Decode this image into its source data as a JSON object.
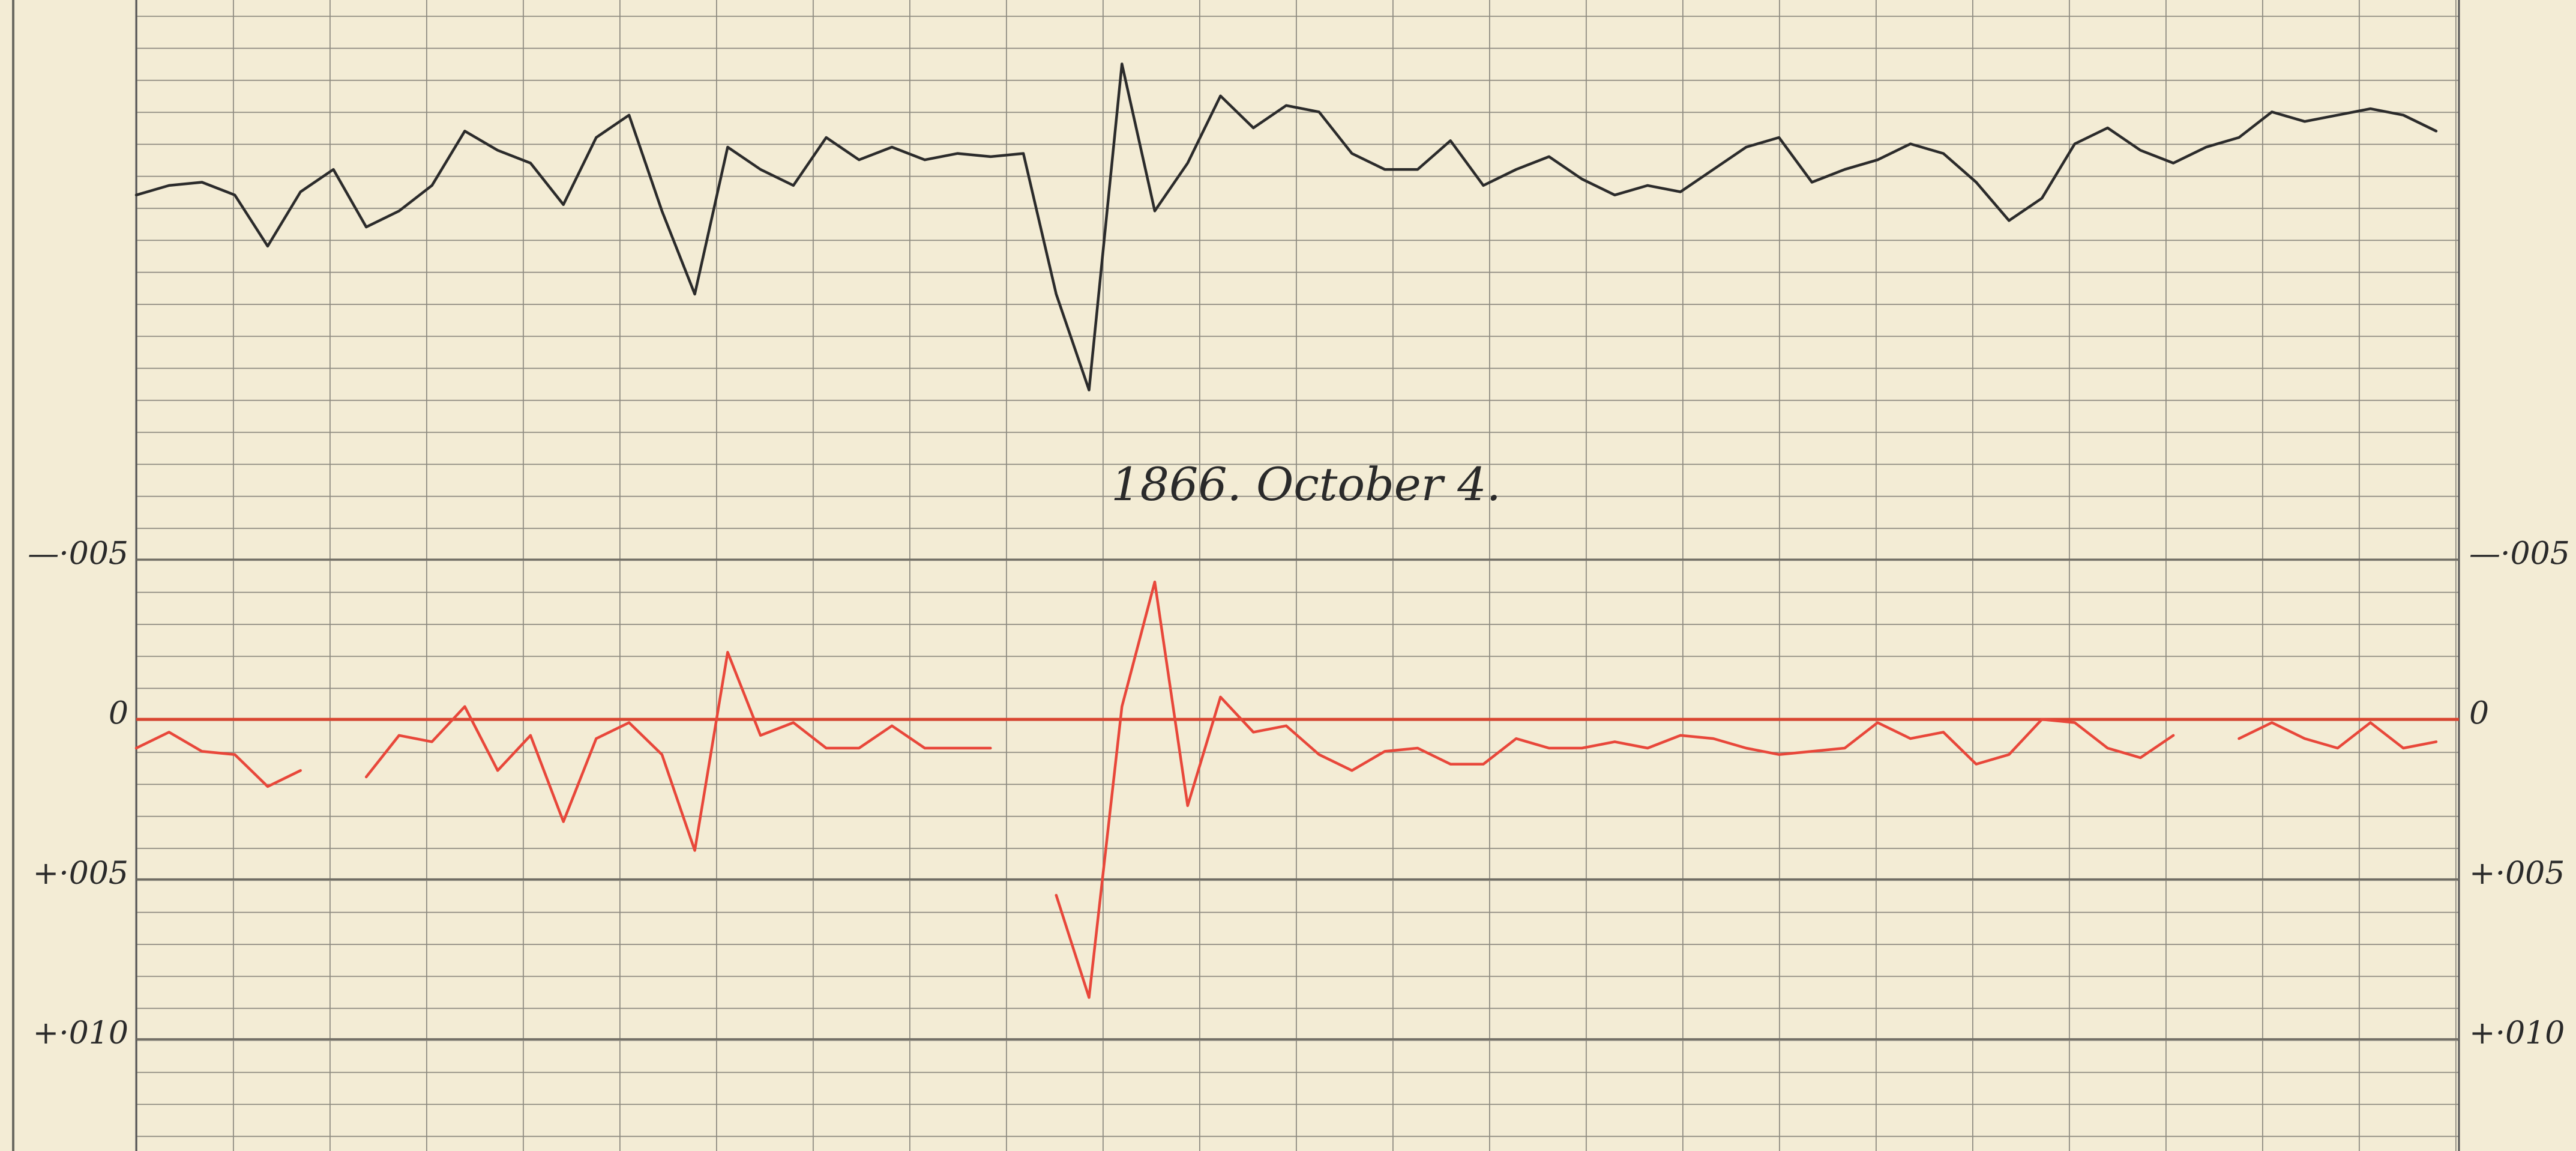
{
  "chart_data": {
    "type": "line",
    "title": "1866. October 4.",
    "series": [
      {
        "color": "#2b2b2b",
        "values": [
          -0.0164,
          -0.0167,
          -0.0168,
          -0.0164,
          -0.0148,
          -0.0165,
          -0.0172,
          -0.0154,
          -0.0159,
          -0.0167,
          -0.0184,
          -0.0178,
          -0.0174,
          -0.0161,
          -0.0182,
          -0.0189,
          -0.0159,
          -0.0133,
          -0.0179,
          -0.0172,
          -0.0167,
          -0.0182,
          -0.0175,
          -0.0179,
          -0.0175,
          -0.0177,
          -0.0176,
          -0.0177,
          -0.0133,
          -0.0103,
          -0.0205,
          -0.0159,
          -0.0174,
          -0.0195,
          -0.0185,
          -0.0192,
          -0.019,
          -0.0177,
          -0.0172,
          -0.0172,
          -0.0181,
          -0.0167,
          -0.0172,
          -0.0176,
          -0.0169,
          -0.0164,
          -0.0167,
          -0.0165,
          -0.0172,
          -0.0179,
          -0.0182,
          -0.0168,
          -0.0172,
          -0.0175,
          -0.018,
          -0.0177,
          -0.0168,
          -0.0156,
          -0.0163,
          -0.018,
          -0.0185,
          -0.0178,
          -0.0174,
          -0.0179,
          -0.0182,
          -0.019,
          -0.0187,
          -0.0189,
          -0.0191,
          -0.0189,
          -0.0184
        ]
      },
      {
        "color": "#e8473a",
        "values": [
          0.0009,
          0.0004,
          0.001,
          0.0011,
          0.0021,
          0.0016,
          null,
          0.0018,
          0.0005,
          0.0007,
          -0.0004,
          0.0016,
          0.0005,
          0.0032,
          0.0006,
          0.0001,
          0.0011,
          0.0041,
          -0.0021,
          0.0005,
          0.0001,
          0.0009,
          0.0009,
          0.0002,
          0.0009,
          0.0009,
          0.0009,
          null,
          0.0055,
          0.0087,
          -0.0004,
          -0.0043,
          0.0027,
          -0.0007,
          0.0004,
          0.0002,
          0.0011,
          0.0016,
          0.001,
          0.0009,
          0.0014,
          0.0014,
          0.0006,
          0.0009,
          0.0009,
          0.0007,
          0.0009,
          0.0005,
          0.0006,
          0.0009,
          0.0011,
          0.001,
          0.0009,
          0.0001,
          0.0006,
          0.0004,
          0.0014,
          0.0011,
          0,
          0.0001,
          0.0009,
          0.0012,
          0.0005,
          null,
          0.0006,
          0.0001,
          0.0006,
          0.0009,
          0.0001,
          0.0009,
          0.0007
        ]
      }
    ],
    "ylim": [
      -0.0225,
      0.0135
    ],
    "y_inverted": true,
    "yticks": [
      {
        "value": -0.005,
        "label": "—·005"
      },
      0,
      {
        "value": 0.005,
        "label": "+·005"
      },
      {
        "value": 0.01,
        "label": "+·010"
      }
    ],
    "zero_line_color": "#d9442f",
    "grid": true
  }
}
